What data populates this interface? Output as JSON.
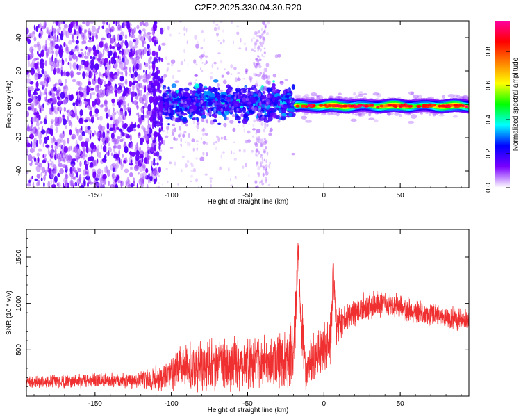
{
  "chart_data": [
    {
      "type": "heatmap",
      "title": "C2E2.2025.330.04.30.R20",
      "xlabel": "Height of straight line (km)",
      "ylabel": "Frequency (Hz)",
      "xlim": [
        -195,
        95
      ],
      "ylim": [
        -50,
        50
      ],
      "xticks": [
        -150,
        -100,
        -50,
        0,
        50
      ],
      "yticks": [
        -40,
        -20,
        0,
        20,
        40
      ],
      "colorbar": {
        "label": "Normalized spectral amplitude",
        "range": [
          0,
          0.98
        ],
        "ticks": [
          "0.0",
          "0.2",
          "0.4",
          "0.6",
          "0.8"
        ],
        "tick_values": [
          0.0,
          0.2,
          0.4,
          0.6,
          0.8
        ],
        "colors": [
          "#ffffff",
          "#7a00ff",
          "#0000ff",
          "#00ffff",
          "#00ff00",
          "#ffff00",
          "#ff8000",
          "#ff0000",
          "#ff00a0"
        ]
      },
      "regions": [
        {
          "name": "scattered noise",
          "x": [
            -195,
            -110
          ],
          "freq_spread": 50,
          "amplitude": 0.1
        },
        {
          "name": "broad echo band",
          "x": [
            -107,
            -20
          ],
          "center_freq": 1,
          "half_width": 6,
          "amplitude": 0.2
        },
        {
          "name": "sparse speckle",
          "x": [
            -110,
            -35
          ],
          "freq_spread": 50,
          "amplitude": 0.03
        },
        {
          "name": "narrow echo band",
          "x": [
            -18,
            95
          ],
          "center_freq": -1,
          "half_width": 2,
          "amplitude": 0.75
        }
      ]
    },
    {
      "type": "line",
      "xlabel": "Height of straight line (km)",
      "ylabel": "SNR (10 * v/v)",
      "xlim": [
        -195,
        95
      ],
      "ylim": [
        0,
        1800
      ],
      "xticks": [
        -150,
        -100,
        -50,
        0,
        50
      ],
      "yticks": [
        500,
        1000,
        1500
      ],
      "series": [
        {
          "name": "SNR",
          "color": "#f03030",
          "x": [
            -195,
            -170,
            -140,
            -120,
            -105,
            -95,
            -80,
            -60,
            -40,
            -30,
            -22,
            -20,
            -18,
            -17,
            -15,
            -12,
            -8,
            -5,
            0,
            5,
            6,
            8,
            15,
            25,
            35,
            50,
            70,
            95
          ],
          "y": [
            150,
            160,
            170,
            170,
            200,
            300,
            330,
            350,
            360,
            380,
            420,
            500,
            900,
            1650,
            780,
            280,
            400,
            430,
            520,
            700,
            1400,
            780,
            850,
            950,
            1000,
            950,
            880,
            820
          ],
          "noise": [
            60,
            70,
            80,
            90,
            160,
            230,
            260,
            270,
            280,
            300,
            350,
            420,
            380,
            100,
            400,
            220,
            240,
            240,
            250,
            300,
            120,
            250,
            170,
            150,
            140,
            130,
            120,
            110
          ]
        }
      ]
    }
  ]
}
